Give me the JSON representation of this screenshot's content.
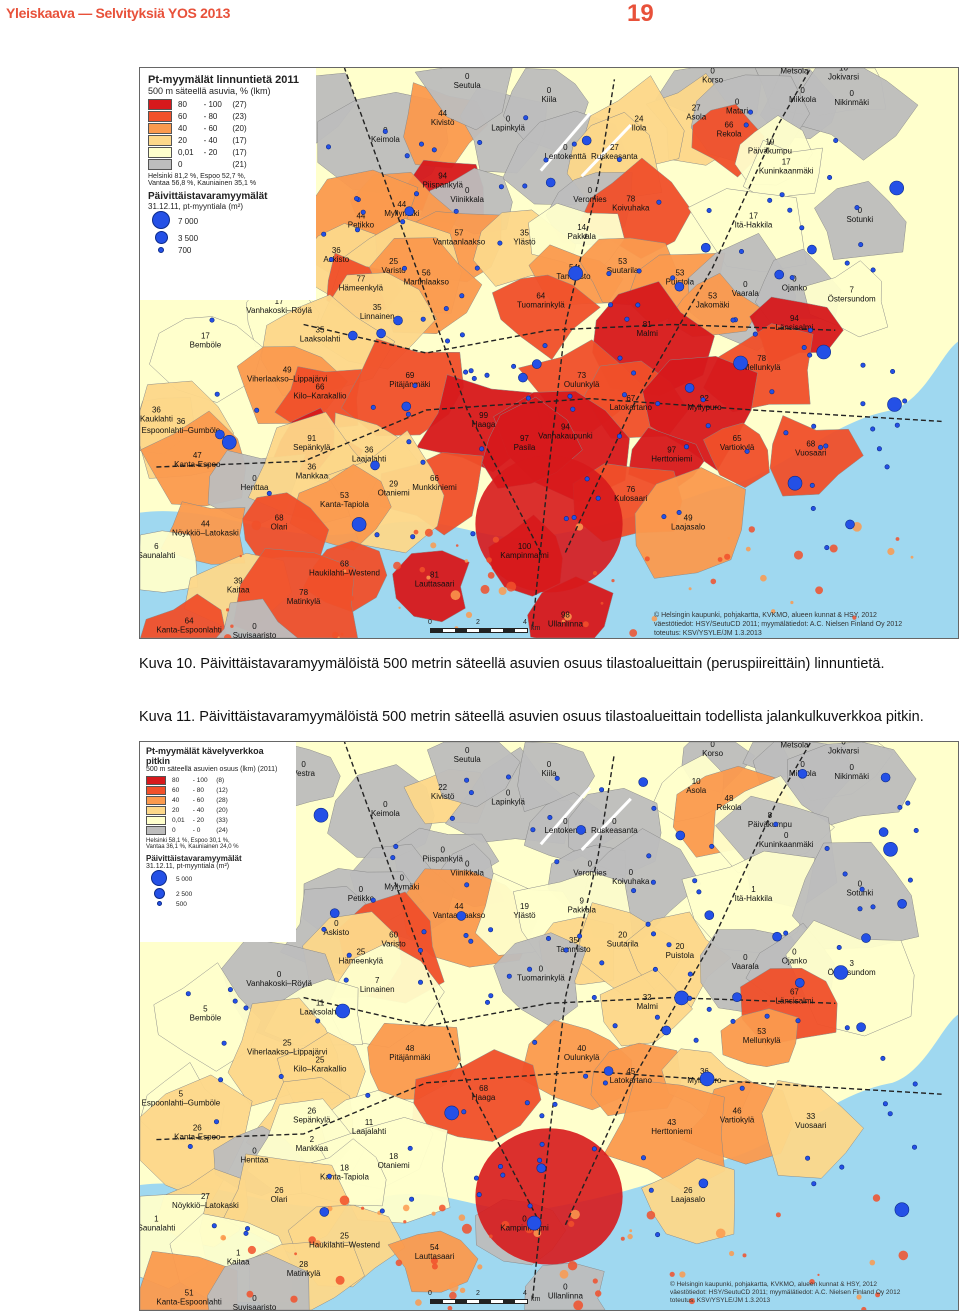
{
  "header": {
    "title": "Yleiskaava — Selvityksiä YOS 2013",
    "page_number": "19"
  },
  "colors": {
    "accent": "#e8513a",
    "sea": "#9fd8f0",
    "c80": "#d7191c",
    "c60": "#f1502a",
    "c40": "#fb9a4e",
    "c20": "#fdd88a",
    "c0_20": "#ffffcc",
    "c0": "#bdbdbd",
    "store": "#2450e6"
  },
  "map1": {
    "legend": {
      "title": "Pt-myymälät linnuntietä 2011",
      "subtitle": "500 m säteellä asuvia, % (lkm)",
      "classes": [
        {
          "from": "80",
          "to": "- 100",
          "count": "(27)"
        },
        {
          "from": "60",
          "to": "- 80",
          "count": "(23)"
        },
        {
          "from": "40",
          "to": "- 60",
          "count": "(20)"
        },
        {
          "from": "20",
          "to": "- 40",
          "count": "(17)"
        },
        {
          "from": "0,01",
          "to": "- 20",
          "count": "(17)"
        },
        {
          "from": "0",
          "to": "",
          "count": "(21)"
        }
      ],
      "stats_1": "Helsinki 81,2 %, Espoo 52,7 %,",
      "stats_2": "Vantaa 56,8 %, Kauniainen 35,1 %",
      "symbol_title": "Päivittäistavaramyymälät",
      "symbol_subtitle": "31.12.11, pt-myyntiala (m²)",
      "sizes": [
        "7 000",
        "3 500",
        "700"
      ]
    },
    "credits": [
      "© Helsingin kaupunki, pohjakartta, KVKMO, alueen kunnat & HSY, 2012",
      "väestötiedot: HSY/SeutuCD 2011; myymälätiedot: A.C. Nielsen Finland Oy 2012",
      "toteutus: KSV/YSYLE/JM 1.3.2013"
    ],
    "scale": {
      "zero": "0",
      "mid": "2",
      "end": "4",
      "unit": "km"
    },
    "places": [
      {
        "name": "Vestra",
        "val": "0"
      },
      {
        "name": "Keimola",
        "val": "0"
      },
      {
        "name": "Kivistö",
        "val": "44"
      },
      {
        "name": "Lapinkylä",
        "val": "0"
      },
      {
        "name": "Seutula",
        "val": "0"
      },
      {
        "name": "Kiila",
        "val": "0"
      },
      {
        "name": "Lentokenttä",
        "val": "0"
      },
      {
        "name": "Korso",
        "val": "0"
      },
      {
        "name": "Metsola",
        "val": "0"
      },
      {
        "name": "Jokivarsi",
        "val": "16"
      },
      {
        "name": "Mikkola",
        "val": "0"
      },
      {
        "name": "Nikinmäki",
        "val": "0"
      },
      {
        "name": "Asola",
        "val": "27"
      },
      {
        "name": "Matari",
        "val": "0"
      },
      {
        "name": "Rekola",
        "val": "66"
      },
      {
        "name": "Ilola",
        "val": "24"
      },
      {
        "name": "Ruskeasanta",
        "val": "27"
      },
      {
        "name": "Päiväkumpu",
        "val": "19"
      },
      {
        "name": "Kuninkaanmäki",
        "val": "17"
      },
      {
        "name": "Piispankylä",
        "val": "94"
      },
      {
        "name": "Viinikkala",
        "val": "0"
      },
      {
        "name": "Veromies",
        "val": "0"
      },
      {
        "name": "Koivuhaka",
        "val": "78"
      },
      {
        "name": "Myllymäki",
        "val": "44"
      },
      {
        "name": "Petikko",
        "val": "44"
      },
      {
        "name": "Vantaanlaakso",
        "val": "57"
      },
      {
        "name": "Ylästö",
        "val": "35"
      },
      {
        "name": "Pakkala",
        "val": "14"
      },
      {
        "name": "Itä-Hakkila",
        "val": "17"
      },
      {
        "name": "Sotunki",
        "val": "0"
      },
      {
        "name": "Askisto",
        "val": "36"
      },
      {
        "name": "Varisto",
        "val": "25"
      },
      {
        "name": "Hämeenkylä",
        "val": "77"
      },
      {
        "name": "Martinlaakso",
        "val": "56"
      },
      {
        "name": "Tammisto",
        "val": "54"
      },
      {
        "name": "Suutarila",
        "val": "53"
      },
      {
        "name": "Puistola",
        "val": "53"
      },
      {
        "name": "Vaarala",
        "val": "0"
      },
      {
        "name": "Ojanko",
        "val": "0"
      },
      {
        "name": "Östersundom",
        "val": "7"
      },
      {
        "name": "Vanhakoski–Röylä",
        "val": "17"
      },
      {
        "name": "Linnainen",
        "val": "35"
      },
      {
        "name": "Tuomarinkylä",
        "val": "64"
      },
      {
        "name": "Jakomäki",
        "val": "53"
      },
      {
        "name": "Länsisalmi",
        "val": "94"
      },
      {
        "name": "Bemböle",
        "val": "17"
      },
      {
        "name": "Laaksolahti",
        "val": "35"
      },
      {
        "name": "Malmi",
        "val": "81"
      },
      {
        "name": "Mellunkylä",
        "val": "78"
      },
      {
        "name": "Viherlaakso–Lippajärvi",
        "val": "49"
      },
      {
        "name": "Kilo–Karakallio",
        "val": "66"
      },
      {
        "name": "Pitäjänmäki",
        "val": "69"
      },
      {
        "name": "Oulunkylä",
        "val": "73"
      },
      {
        "name": "Latokartano",
        "val": "67"
      },
      {
        "name": "Myllypuro",
        "val": "92"
      },
      {
        "name": "Kauklahti",
        "val": "36"
      },
      {
        "name": "Espoonlahti–Gumböle",
        "val": "36"
      },
      {
        "name": "Haaga",
        "val": "99"
      },
      {
        "name": "Vanhakaupunki",
        "val": "94"
      },
      {
        "name": "Vartiokylä",
        "val": "65"
      },
      {
        "name": "Vuosaari",
        "val": "68"
      },
      {
        "name": "Kanta-Espoo",
        "val": "47"
      },
      {
        "name": "Sepänkylä",
        "val": "91"
      },
      {
        "name": "Laajalahti",
        "val": "36"
      },
      {
        "name": "Pasila",
        "val": "97"
      },
      {
        "name": "Herttoniemi",
        "val": "97"
      },
      {
        "name": "Henttaa",
        "val": "0"
      },
      {
        "name": "Mankkaa",
        "val": "36"
      },
      {
        "name": "Munkkiniemi",
        "val": "66"
      },
      {
        "name": "Kulosaari",
        "val": "76"
      },
      {
        "name": "Otaniemi",
        "val": "29"
      },
      {
        "name": "Kanta-Tapiola",
        "val": "53"
      },
      {
        "name": "Nöykkiö–Latokaski",
        "val": "44"
      },
      {
        "name": "Olari",
        "val": "68"
      },
      {
        "name": "Laajasalo",
        "val": "49"
      },
      {
        "name": "Saunalahti",
        "val": "6"
      },
      {
        "name": "Kaitaa",
        "val": "39"
      },
      {
        "name": "Haukilahti–Westend",
        "val": "68"
      },
      {
        "name": "Lauttasaari",
        "val": "81"
      },
      {
        "name": "Matinkylä",
        "val": "78"
      },
      {
        "name": "Kanta-Espoonlahti",
        "val": "64"
      },
      {
        "name": "Suvisaaristo",
        "val": "0"
      },
      {
        "name": "Ullanlinna",
        "val": "98"
      },
      {
        "name": "Kampinmalmi",
        "val": "100"
      }
    ]
  },
  "caption1": "Kuva 10. Päivittäistavaramyymälöistä 500 metrin säteellä asuvien osuus tilastoalueittain (peruspiireittäin) linnuntietä.",
  "caption2": "Kuva 11. Päivittäistavaramyymälöistä 500 metrin säteellä asuvien osuus tilastoalueittain todellista jalankulkuverkkoa pitkin.",
  "map2": {
    "legend": {
      "title": "Pt-myymälät kävelyverkkoa pitkin",
      "subtitle": "500 m säteellä asuvien osuus (lkm) (2011)",
      "classes": [
        {
          "from": "80",
          "to": "- 100",
          "count": "(8)"
        },
        {
          "from": "60",
          "to": "- 80",
          "count": "(12)"
        },
        {
          "from": "40",
          "to": "- 60",
          "count": "(28)"
        },
        {
          "from": "20",
          "to": "- 40",
          "count": "(20)"
        },
        {
          "from": "0,01",
          "to": "- 20",
          "count": "(33)"
        },
        {
          "from": "0",
          "to": "- 0",
          "count": "(24)"
        }
      ],
      "stats_1": "Helsinki 58,1 %, Espoo 30,1 %,",
      "stats_2": "Vantaa 36,1 %, Kauniainen 24,0 %",
      "symbol_title": "Päivittäistavaramyymälät",
      "symbol_subtitle": "31.12.11, pt-myyntiala (m²)",
      "sizes": [
        "5 000",
        "2 500",
        "500"
      ]
    },
    "credits": [
      "© Helsingin kaupunki, pohjakartta, KVKMO, alueen kunnat & HSY, 2012",
      "väestötiedot: HSY/SeutuCD 2011; myymälätiedot: A.C. Nielsen Finland Oy 2012",
      "toteutus: KSV/YSYLE/JM 1.3.2013"
    ],
    "scale": {
      "zero": "0",
      "mid": "2",
      "end": "4",
      "unit": "km"
    },
    "places": [
      {
        "name": "Vestra",
        "val": "0"
      },
      {
        "name": "Keimola",
        "val": "0"
      },
      {
        "name": "Kivistö",
        "val": "22"
      },
      {
        "name": "Lapinkylä",
        "val": "0"
      },
      {
        "name": "Seutula",
        "val": "0"
      },
      {
        "name": "Kiila",
        "val": "0"
      },
      {
        "name": "Lentokenttä",
        "val": "0"
      },
      {
        "name": "Korso",
        "val": "0"
      },
      {
        "name": "Metsola",
        "val": "0"
      },
      {
        "name": "Jokivarsi",
        "val": "6"
      },
      {
        "name": "Mikkola",
        "val": "0"
      },
      {
        "name": "Nikinmäki",
        "val": "0"
      },
      {
        "name": "Asola",
        "val": "10"
      },
      {
        "name": "Rekola",
        "val": "48"
      },
      {
        "name": "Ruskeasanta",
        "val": "0"
      },
      {
        "name": "Päiväkumpu",
        "val": "8"
      },
      {
        "name": "Kuninkaanmäki",
        "val": "0"
      },
      {
        "name": "Piispankylä",
        "val": "0"
      },
      {
        "name": "Viinikkala",
        "val": "0"
      },
      {
        "name": "Veromies",
        "val": "0"
      },
      {
        "name": "Koivuhaka",
        "val": "0"
      },
      {
        "name": "Myllymäki",
        "val": "0"
      },
      {
        "name": "Petikko",
        "val": "0"
      },
      {
        "name": "Vantaanlaakso",
        "val": "44"
      },
      {
        "name": "Ylästö",
        "val": "19"
      },
      {
        "name": "Pakkala",
        "val": "9"
      },
      {
        "name": "Itä-Hakkila",
        "val": "1"
      },
      {
        "name": "Sotunki",
        "val": "0"
      },
      {
        "name": "Askisto",
        "val": "0"
      },
      {
        "name": "Varisto",
        "val": "60"
      },
      {
        "name": "Hämeenkylä",
        "val": "25"
      },
      {
        "name": "Tammisto",
        "val": "35"
      },
      {
        "name": "Suutarila",
        "val": "20"
      },
      {
        "name": "Puistola",
        "val": "20"
      },
      {
        "name": "Vaarala",
        "val": "0"
      },
      {
        "name": "Ojanko",
        "val": "0"
      },
      {
        "name": "Östersundom",
        "val": "3"
      },
      {
        "name": "Vanhakoski–Röylä",
        "val": "0"
      },
      {
        "name": "Linnainen",
        "val": "7"
      },
      {
        "name": "Tuomarinkylä",
        "val": "0"
      },
      {
        "name": "Länsisalmi",
        "val": "67"
      },
      {
        "name": "Bemböle",
        "val": "5"
      },
      {
        "name": "Laaksolahti",
        "val": "11"
      },
      {
        "name": "Malmi",
        "val": "32"
      },
      {
        "name": "Mellunkylä",
        "val": "53"
      },
      {
        "name": "Viherlaakso–Lippajärvi",
        "val": "25"
      },
      {
        "name": "Kilo–Karakallio",
        "val": "25"
      },
      {
        "name": "Pitäjänmäki",
        "val": "48"
      },
      {
        "name": "Oulunkylä",
        "val": "40"
      },
      {
        "name": "Latokartano",
        "val": "45"
      },
      {
        "name": "Myllypuro",
        "val": "36"
      },
      {
        "name": "Espoonlahti–Gumböle",
        "val": "5"
      },
      {
        "name": "Haaga",
        "val": "68"
      },
      {
        "name": "Vartiokylä",
        "val": "46"
      },
      {
        "name": "Vuosaari",
        "val": "33"
      },
      {
        "name": "Kanta-Espoo",
        "val": "26"
      },
      {
        "name": "Sepänkylä",
        "val": "26"
      },
      {
        "name": "Laajalahti",
        "val": "11"
      },
      {
        "name": "Herttoniemi",
        "val": "43"
      },
      {
        "name": "Henttaa",
        "val": "0"
      },
      {
        "name": "Mankkaa",
        "val": "2"
      },
      {
        "name": "Otaniemi",
        "val": "18"
      },
      {
        "name": "Kanta-Tapiola",
        "val": "18"
      },
      {
        "name": "Nöykkiö–Latokaski",
        "val": "27"
      },
      {
        "name": "Olari",
        "val": "26"
      },
      {
        "name": "Laajasalo",
        "val": "26"
      },
      {
        "name": "Saunalahti",
        "val": "1"
      },
      {
        "name": "Kaitaa",
        "val": "1"
      },
      {
        "name": "Haukilahti–Westend",
        "val": "25"
      },
      {
        "name": "Lauttasaari",
        "val": "54"
      },
      {
        "name": "Matinkylä",
        "val": "28"
      },
      {
        "name": "Kanta-Espoonlahti",
        "val": "51"
      },
      {
        "name": "Suvisaaristo",
        "val": "0"
      },
      {
        "name": "Ullanlinna",
        "val": "0"
      },
      {
        "name": "Kampinmalmi",
        "val": "0"
      }
    ]
  }
}
